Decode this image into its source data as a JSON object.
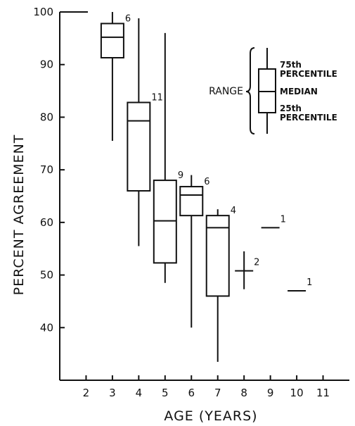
{
  "chart_data": {
    "type": "boxplot",
    "xlabel": "AGE (YEARS)",
    "ylabel": "PERCENT AGREEMENT",
    "ylim": [
      30,
      100
    ],
    "xlim": [
      1,
      12
    ],
    "grid": false,
    "x_ticks": [
      2,
      3,
      4,
      5,
      6,
      7,
      8,
      9,
      10,
      11
    ],
    "y_ticks": [
      40,
      50,
      60,
      70,
      80,
      90,
      100
    ],
    "boxes": [
      {
        "age": 3,
        "n": "6",
        "min": 75.5,
        "q1": 91.3,
        "median": 95.2,
        "q3": 97.8,
        "max": 100
      },
      {
        "age": 4,
        "n": "11",
        "min": 55.5,
        "q1": 66.0,
        "median": 79.3,
        "q3": 82.8,
        "max": 98.8
      },
      {
        "age": 5,
        "n": "9",
        "min": 48.5,
        "q1": 52.3,
        "median": 60.3,
        "q3": 68.0,
        "max": 96.0
      },
      {
        "age": 6,
        "n": "6",
        "min": 40.0,
        "q1": 61.3,
        "median": 65.2,
        "q3": 66.8,
        "max": 69.0
      },
      {
        "age": 7,
        "n": "4",
        "min": 33.5,
        "q1": 46.0,
        "median": 59.0,
        "q3": 61.3,
        "max": 62.5
      }
    ],
    "singles": [
      {
        "age": 8,
        "n": "2",
        "value": 50.8,
        "min": 47.3,
        "max": 54.5
      },
      {
        "age": 9,
        "n": "1",
        "value": 59.0
      },
      {
        "age": 10,
        "n": "1",
        "value": 47.0
      }
    ],
    "key": {
      "range_label": "RANGE",
      "p75_line1": "75th",
      "p75_line2": "PERCENTILE",
      "median_label": "MEDIAN",
      "p25_line1": "25th",
      "p25_line2": "PERCENTILE"
    }
  }
}
